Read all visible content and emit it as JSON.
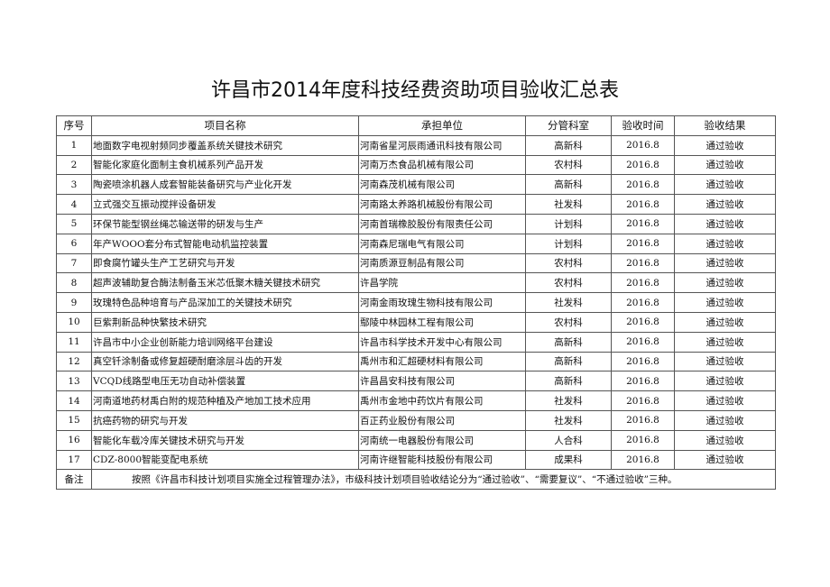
{
  "title": "许昌市2014年度科技经费资助项目验收汇总表",
  "headers": [
    "序号",
    "项目名称",
    "承担单位",
    "分管科室",
    "验收时间",
    "验收结果"
  ],
  "rows": [
    [
      "1",
      "地面数字电视射频同步覆盖系统关键技术研究",
      "河南省星河辰雨通讯科技有限公司",
      "高新科",
      "2016.8",
      "通过验收"
    ],
    [
      "2",
      "智能化家庭化面制主食机械系列产品开发",
      "河南万杰食品机械有限公司",
      "农村科",
      "2016.8",
      "通过验收"
    ],
    [
      "3",
      "陶瓷喷涂机器人成套智能装备研究与产业化开发",
      "河南森茂机械有限公司",
      "高新科",
      "2016.8",
      "通过验收"
    ],
    [
      "4",
      "立式强交互振动搅拌设备研发",
      "河南路太养路机械股份有限公司",
      "社发科",
      "2016.8",
      "通过验收"
    ],
    [
      "5",
      "环保节能型钢丝绳芯输送带的研发与生产",
      "河南首瑞橡胶股份有限责任公司",
      "计划科",
      "2016.8",
      "通过验收"
    ],
    [
      "6",
      "年产WOOO套分布式智能电动机监控装置",
      "河南森尼瑞电气有限公司",
      "计划科",
      "2016.8",
      "通过验收"
    ],
    [
      "7",
      "即食腐竹罐头生产工艺研究与开发",
      "河南质源豆制品有限公司",
      "农村科",
      "2016.8",
      "通过验收"
    ],
    [
      "8",
      "超声波辅助复合酶法制备玉米芯低聚木糖关键技术研究",
      "许昌学院",
      "农村科",
      "2016.8",
      "通过验收"
    ],
    [
      "9",
      "玫瑰特色品种培育与产品深加工的关键技术研究",
      "河南金雨玫瑰生物科技有限公司",
      "社发科",
      "2016.8",
      "通过验收"
    ],
    [
      "10",
      "巨紫荆新品种快繁技术研究",
      "鄢陵中林园林工程有限公司",
      "农村科",
      "2016.8",
      "通过验收"
    ],
    [
      "11",
      "许昌市中小企业创新能力培训网络平台建设",
      "许昌市科学技术开发中心有限公司",
      "高新科",
      "2016.8",
      "通过验收"
    ],
    [
      "12",
      "真空钎涂制备或修复超硬耐磨涂层斗齿的开发",
      "禹州市和汇超硬材料有限公司",
      "高新科",
      "2016.8",
      "通过验收"
    ],
    [
      "13",
      "VCQD线路型电压无功自动补偿装置",
      "许昌昌安科技有限公司",
      "高新科",
      "2016.8",
      "通过验收"
    ],
    [
      "14",
      "河南道地药材禹白附的规范种植及产地加工技术应用",
      "禹州市金地中药饮片有限公司",
      "社发科",
      "2016.8",
      "通过验收"
    ],
    [
      "15",
      "抗癌药物的研究与开发",
      "百正药业股份有限公司",
      "社发科",
      "2016.8",
      "通过验收"
    ],
    [
      "16",
      "智能化车载冷库关键技术研究与开发",
      "河南统一电器股份有限公司",
      "人合科",
      "2016.8",
      "通过验收"
    ],
    [
      "17",
      "CDZ-8000智能变配电系统",
      "河南许继智能科技股份有限公司",
      "成果科",
      "2016.8",
      "通过验收"
    ]
  ],
  "note_label": "备注",
  "note_text": "按照《许昌市科技计划项目实施全过程管理办法》，市级科技计划项目验收结论分为“通过验收”、“需要复议”、“不通过验收”三种。"
}
